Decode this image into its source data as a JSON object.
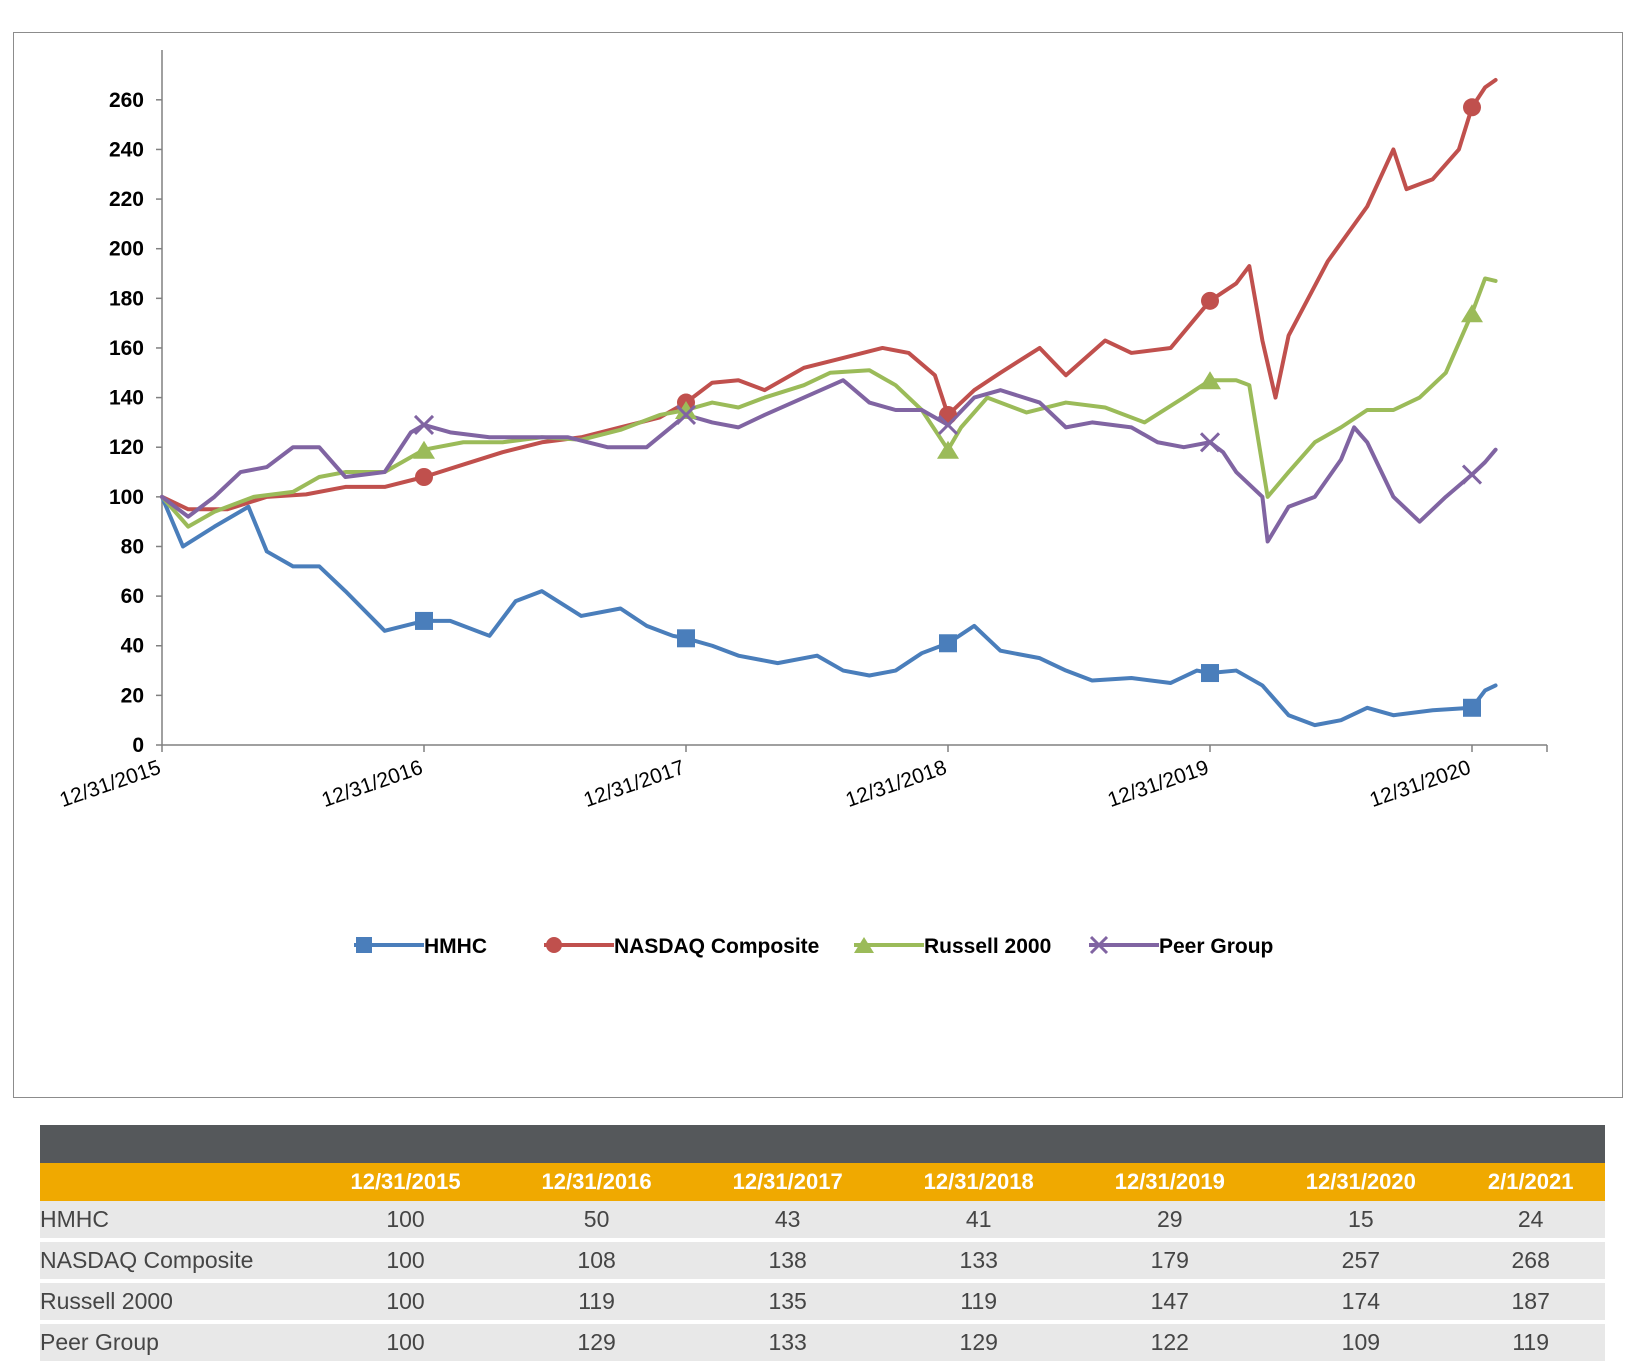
{
  "chart_data": {
    "type": "line",
    "title": "",
    "xlabel": "",
    "ylabel": "",
    "ylim": [
      0,
      270
    ],
    "y_ticks": [
      0,
      20,
      40,
      60,
      80,
      100,
      120,
      140,
      160,
      180,
      200,
      220,
      240,
      260
    ],
    "x_tick_labels": [
      "12/31/2015",
      "12/31/2016",
      "12/31/2017",
      "12/31/2018",
      "12/31/2019",
      "12/31/2020"
    ],
    "x_range": [
      0,
      5.09
    ],
    "legend_position": "bottom",
    "series": [
      {
        "name": "HMHC",
        "color": "#4a7ebb",
        "marker": "square",
        "values": [
          [
            0,
            100
          ],
          [
            0.08,
            80
          ],
          [
            0.2,
            88
          ],
          [
            0.33,
            96
          ],
          [
            0.4,
            78
          ],
          [
            0.5,
            72
          ],
          [
            0.6,
            72
          ],
          [
            0.7,
            62
          ],
          [
            0.85,
            46
          ],
          [
            1,
            50
          ],
          [
            1.1,
            50
          ],
          [
            1.25,
            44
          ],
          [
            1.35,
            58
          ],
          [
            1.45,
            62
          ],
          [
            1.6,
            52
          ],
          [
            1.75,
            55
          ],
          [
            1.85,
            48
          ],
          [
            1.95,
            44
          ],
          [
            2,
            43
          ],
          [
            2.1,
            40
          ],
          [
            2.2,
            36
          ],
          [
            2.35,
            33
          ],
          [
            2.5,
            36
          ],
          [
            2.6,
            30
          ],
          [
            2.7,
            28
          ],
          [
            2.8,
            30
          ],
          [
            2.9,
            37
          ],
          [
            3,
            41
          ],
          [
            3.1,
            48
          ],
          [
            3.2,
            38
          ],
          [
            3.35,
            35
          ],
          [
            3.45,
            30
          ],
          [
            3.55,
            26
          ],
          [
            3.7,
            27
          ],
          [
            3.85,
            25
          ],
          [
            3.95,
            30
          ],
          [
            4,
            29
          ],
          [
            4.1,
            30
          ],
          [
            4.2,
            24
          ],
          [
            4.3,
            12
          ],
          [
            4.4,
            8
          ],
          [
            4.5,
            10
          ],
          [
            4.6,
            15
          ],
          [
            4.7,
            12
          ],
          [
            4.85,
            14
          ],
          [
            5,
            15
          ],
          [
            5.05,
            22
          ],
          [
            5.09,
            24
          ]
        ]
      },
      {
        "name": "NASDAQ Composite",
        "color": "#c0504d",
        "marker": "circle",
        "values": [
          [
            0,
            100
          ],
          [
            0.1,
            95
          ],
          [
            0.25,
            95
          ],
          [
            0.4,
            100
          ],
          [
            0.55,
            101
          ],
          [
            0.7,
            104
          ],
          [
            0.85,
            104
          ],
          [
            1,
            108
          ],
          [
            1.15,
            113
          ],
          [
            1.3,
            118
          ],
          [
            1.45,
            122
          ],
          [
            1.6,
            124
          ],
          [
            1.75,
            128
          ],
          [
            1.9,
            132
          ],
          [
            2,
            138
          ],
          [
            2.1,
            146
          ],
          [
            2.2,
            147
          ],
          [
            2.3,
            143
          ],
          [
            2.45,
            152
          ],
          [
            2.6,
            156
          ],
          [
            2.75,
            160
          ],
          [
            2.85,
            158
          ],
          [
            2.95,
            149
          ],
          [
            3,
            133
          ],
          [
            3.1,
            143
          ],
          [
            3.2,
            150
          ],
          [
            3.35,
            160
          ],
          [
            3.45,
            149
          ],
          [
            3.6,
            163
          ],
          [
            3.7,
            158
          ],
          [
            3.85,
            160
          ],
          [
            4,
            179
          ],
          [
            4.1,
            186
          ],
          [
            4.15,
            193
          ],
          [
            4.2,
            163
          ],
          [
            4.25,
            140
          ],
          [
            4.3,
            165
          ],
          [
            4.45,
            195
          ],
          [
            4.6,
            217
          ],
          [
            4.7,
            240
          ],
          [
            4.75,
            224
          ],
          [
            4.85,
            228
          ],
          [
            4.95,
            240
          ],
          [
            5,
            257
          ],
          [
            5.05,
            265
          ],
          [
            5.09,
            268
          ]
        ]
      },
      {
        "name": "Russell 2000",
        "color": "#9bbb59",
        "marker": "triangle",
        "values": [
          [
            0,
            100
          ],
          [
            0.1,
            88
          ],
          [
            0.2,
            94
          ],
          [
            0.35,
            100
          ],
          [
            0.5,
            102
          ],
          [
            0.6,
            108
          ],
          [
            0.7,
            110
          ],
          [
            0.85,
            110
          ],
          [
            1,
            119
          ],
          [
            1.15,
            122
          ],
          [
            1.3,
            122
          ],
          [
            1.45,
            124
          ],
          [
            1.6,
            123
          ],
          [
            1.75,
            127
          ],
          [
            1.9,
            133
          ],
          [
            2,
            135
          ],
          [
            2.1,
            138
          ],
          [
            2.2,
            136
          ],
          [
            2.3,
            140
          ],
          [
            2.45,
            145
          ],
          [
            2.55,
            150
          ],
          [
            2.7,
            151
          ],
          [
            2.8,
            145
          ],
          [
            2.9,
            135
          ],
          [
            3,
            119
          ],
          [
            3.05,
            128
          ],
          [
            3.15,
            140
          ],
          [
            3.3,
            134
          ],
          [
            3.45,
            138
          ],
          [
            3.6,
            136
          ],
          [
            3.75,
            130
          ],
          [
            3.9,
            140
          ],
          [
            4,
            147
          ],
          [
            4.1,
            147
          ],
          [
            4.15,
            145
          ],
          [
            4.22,
            100
          ],
          [
            4.3,
            110
          ],
          [
            4.4,
            122
          ],
          [
            4.5,
            128
          ],
          [
            4.6,
            135
          ],
          [
            4.7,
            135
          ],
          [
            4.8,
            140
          ],
          [
            4.9,
            150
          ],
          [
            5,
            174
          ],
          [
            5.05,
            188
          ],
          [
            5.09,
            187
          ]
        ]
      },
      {
        "name": "Peer Group",
        "color": "#8064a2",
        "marker": "x",
        "values": [
          [
            0,
            100
          ],
          [
            0.1,
            92
          ],
          [
            0.2,
            100
          ],
          [
            0.3,
            110
          ],
          [
            0.4,
            112
          ],
          [
            0.5,
            120
          ],
          [
            0.6,
            120
          ],
          [
            0.7,
            108
          ],
          [
            0.85,
            110
          ],
          [
            0.95,
            126
          ],
          [
            1,
            129
          ],
          [
            1.1,
            126
          ],
          [
            1.25,
            124
          ],
          [
            1.4,
            124
          ],
          [
            1.55,
            124
          ],
          [
            1.7,
            120
          ],
          [
            1.85,
            120
          ],
          [
            2,
            133
          ],
          [
            2.1,
            130
          ],
          [
            2.2,
            128
          ],
          [
            2.3,
            133
          ],
          [
            2.45,
            140
          ],
          [
            2.6,
            147
          ],
          [
            2.7,
            138
          ],
          [
            2.8,
            135
          ],
          [
            2.9,
            135
          ],
          [
            3,
            129
          ],
          [
            3.1,
            140
          ],
          [
            3.2,
            143
          ],
          [
            3.35,
            138
          ],
          [
            3.45,
            128
          ],
          [
            3.55,
            130
          ],
          [
            3.7,
            128
          ],
          [
            3.8,
            122
          ],
          [
            3.9,
            120
          ],
          [
            4,
            122
          ],
          [
            4.05,
            118
          ],
          [
            4.1,
            110
          ],
          [
            4.2,
            100
          ],
          [
            4.22,
            82
          ],
          [
            4.3,
            96
          ],
          [
            4.4,
            100
          ],
          [
            4.5,
            115
          ],
          [
            4.55,
            128
          ],
          [
            4.6,
            122
          ],
          [
            4.7,
            100
          ],
          [
            4.8,
            90
          ],
          [
            4.9,
            100
          ],
          [
            5,
            109
          ],
          [
            5.05,
            114
          ],
          [
            5.09,
            119
          ]
        ]
      }
    ]
  },
  "legend": [
    {
      "label": "HMHC"
    },
    {
      "label": "NASDAQ Composite"
    },
    {
      "label": "Russell 2000"
    },
    {
      "label": "Peer Group"
    }
  ],
  "table": {
    "headers": [
      "",
      "12/31/2015",
      "12/31/2016",
      "12/31/2017",
      "12/31/2018",
      "12/31/2019",
      "12/31/2020",
      "2/1/2021"
    ],
    "rows": [
      {
        "label": "HMHC",
        "values": [
          "100",
          "50",
          "43",
          "41",
          "29",
          "15",
          "24"
        ]
      },
      {
        "label": "NASDAQ Composite",
        "values": [
          "100",
          "108",
          "138",
          "133",
          "179",
          "257",
          "268"
        ]
      },
      {
        "label": "Russell 2000",
        "values": [
          "100",
          "119",
          "135",
          "119",
          "147",
          "174",
          "187"
        ]
      },
      {
        "label": "Peer Group",
        "values": [
          "100",
          "129",
          "133",
          "129",
          "122",
          "109",
          "119"
        ]
      }
    ]
  }
}
